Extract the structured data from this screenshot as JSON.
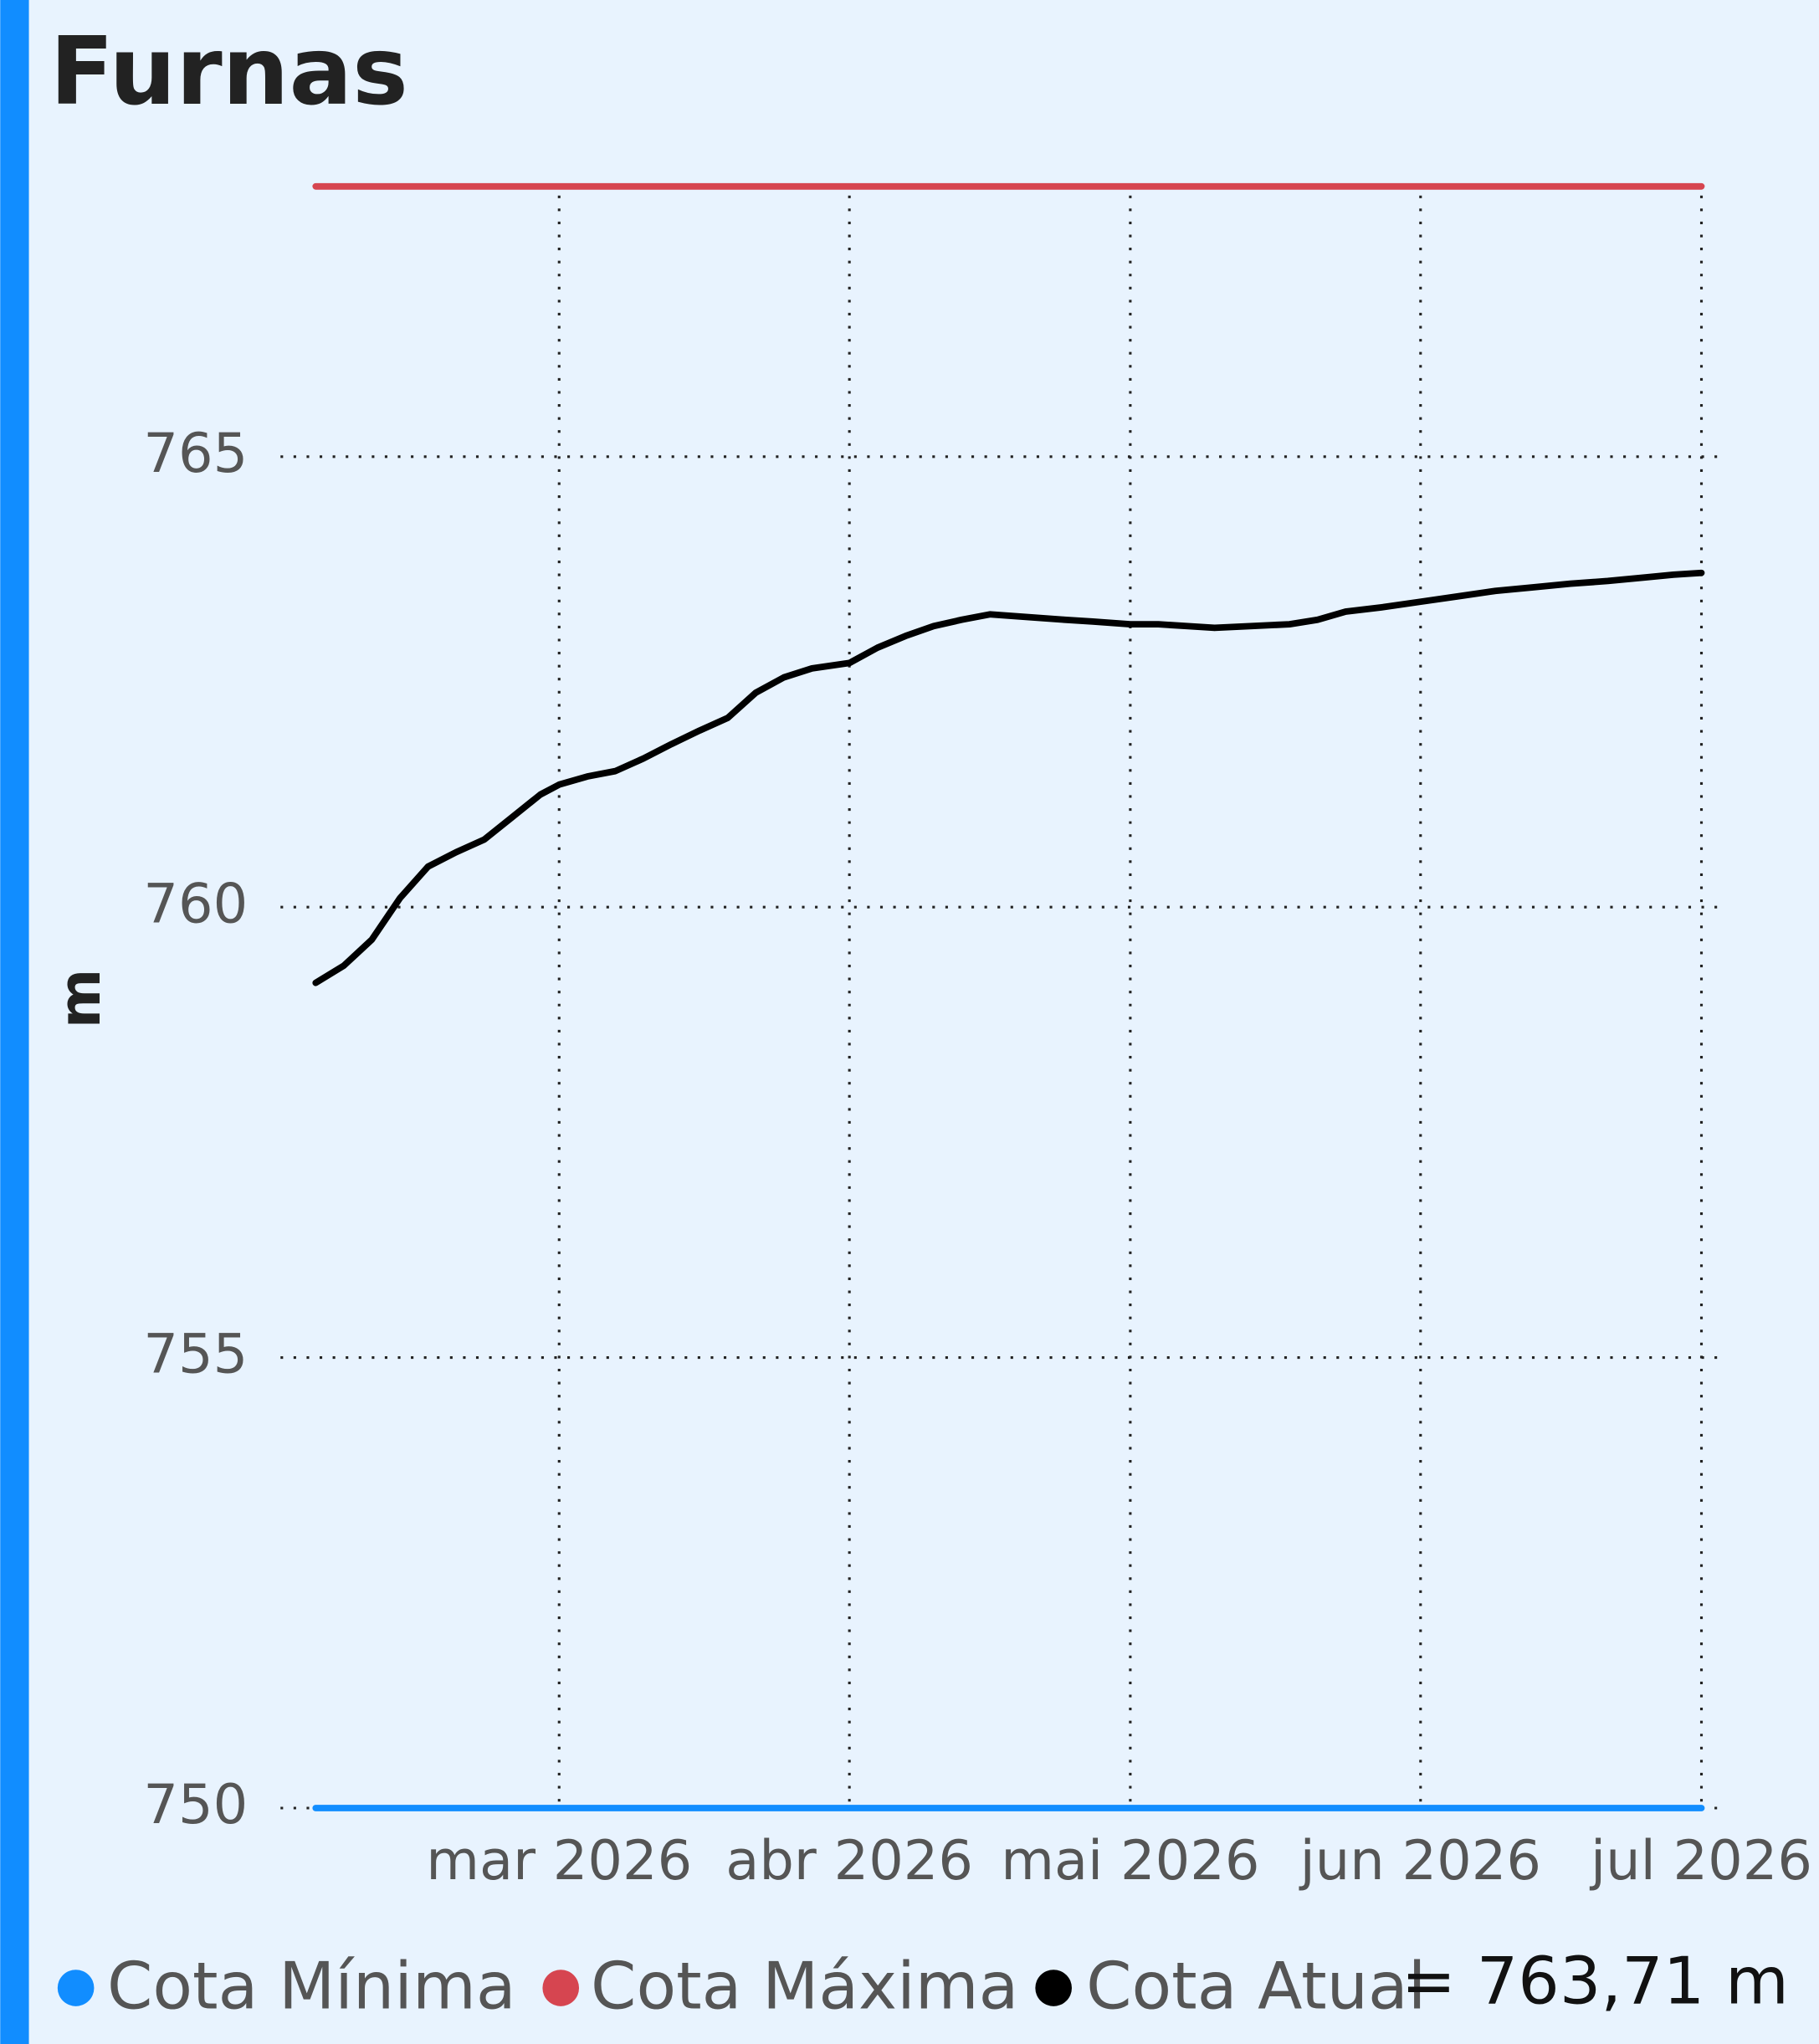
{
  "chart_data": {
    "type": "line",
    "title": "Furnas",
    "ylabel": "m",
    "xlim": [
      34,
      182
    ],
    "xticks": [
      {
        "value": 60,
        "label": "mar 2026"
      },
      {
        "value": 91,
        "label": "abr 2026"
      },
      {
        "value": 121,
        "label": "mai 2026"
      },
      {
        "value": 152,
        "label": "jun 2026"
      },
      {
        "value": 182,
        "label": "jul 2026"
      }
    ],
    "ylim": [
      750,
      768
    ],
    "yticks": [
      750,
      755,
      760,
      765
    ],
    "grid": true,
    "series": [
      {
        "name": "Cota Mínima",
        "color": "#118dff",
        "x": [
          34,
          182
        ],
        "values": [
          750,
          750
        ]
      },
      {
        "name": "Cota Máxima",
        "color": "#d64550",
        "x": [
          34,
          182
        ],
        "values": [
          768,
          768
        ]
      },
      {
        "name": "Cota Atual",
        "color": "#000000",
        "x": [
          34,
          37,
          40,
          43,
          46,
          49,
          52,
          55,
          58,
          60,
          63,
          66,
          69,
          72,
          75,
          78,
          81,
          84,
          87,
          91,
          94,
          97,
          100,
          103,
          106,
          110,
          114,
          117,
          121,
          124,
          127,
          130,
          134,
          138,
          141,
          144,
          148,
          152,
          156,
          160,
          164,
          168,
          172,
          176,
          179,
          182
        ],
        "values": [
          759.16,
          759.35,
          759.64,
          760.1,
          760.45,
          760.61,
          760.75,
          761.0,
          761.25,
          761.36,
          761.45,
          761.51,
          761.65,
          761.81,
          761.96,
          762.1,
          762.38,
          762.55,
          762.65,
          762.71,
          762.88,
          763.01,
          763.12,
          763.19,
          763.25,
          763.22,
          763.19,
          763.17,
          763.14,
          763.14,
          763.12,
          763.1,
          763.12,
          763.14,
          763.19,
          763.28,
          763.33,
          763.39,
          763.45,
          763.51,
          763.55,
          763.59,
          763.62,
          763.66,
          763.69,
          763.71
        ]
      }
    ],
    "current_label": "= 763,71 m"
  }
}
